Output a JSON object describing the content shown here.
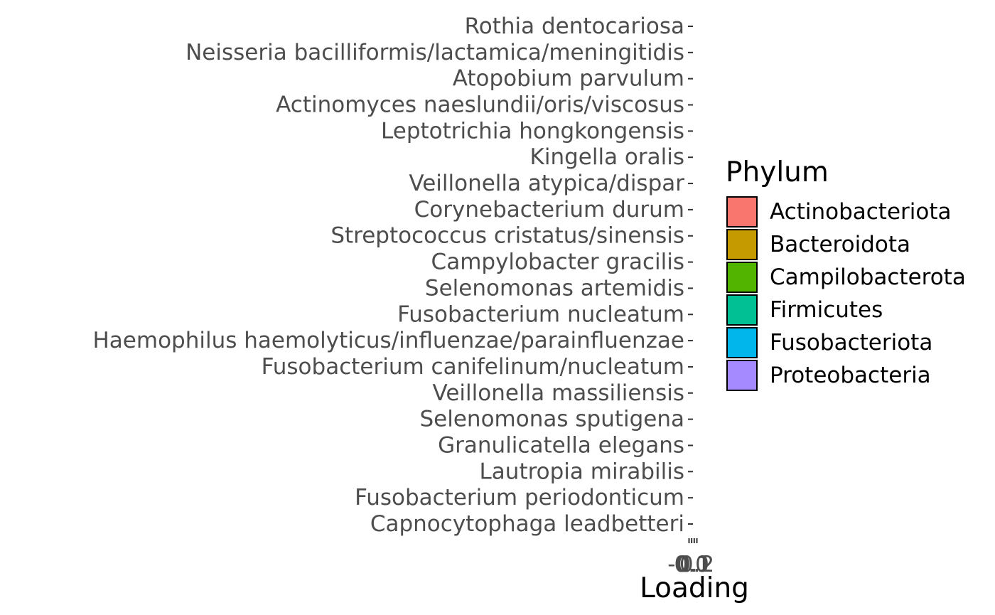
{
  "chart_data": {
    "type": "bar",
    "orientation": "horizontal",
    "categories": [
      "Capnocytophaga leadbetteri",
      "Fusobacterium periodonticum",
      "Lautropia mirabilis",
      "Granulicatella elegans",
      "Selenomonas sputigena",
      "Veillonella massiliensis",
      "Fusobacterium canifelinum/nucleatum",
      "Haemophilus haemolyticus/influenzae/parainfluenzae",
      "Fusobacterium nucleatum",
      "Selenomonas artemidis",
      "Campylobacter gracilis",
      "Streptococcus cristatus/sinensis",
      "Corynebacterium durum",
      "Veillonella atypica/dispar",
      "Kingella oralis",
      "Leptotrichia hongkongensis",
      "Actinomyces naeslundii/oris/viscosus",
      "Atopobium parvulum",
      "Neisseria bacilliformis/lactamica/meningitidis",
      "Rothia dentocariosa"
    ],
    "x_ticks": [
      {
        "value": -0.1,
        "label": "-0.1"
      },
      {
        "value": 0.0,
        "label": "0.0"
      },
      {
        "value": 0.1,
        "label": "0.1"
      },
      {
        "value": 0.2,
        "label": "0.2"
      }
    ],
    "xlim": [
      -0.1,
      0.2
    ],
    "xlabel": "Loading",
    "ylabel": "",
    "title": "",
    "grid": false,
    "legend": {
      "title": "Phylum",
      "placement": "right",
      "entries": [
        {
          "name": "Actinobacteriota",
          "color": "#F8766D"
        },
        {
          "name": "Bacteroidota",
          "color": "#C49A00"
        },
        {
          "name": "Campilobacterota",
          "color": "#53B400"
        },
        {
          "name": "Firmicutes",
          "color": "#00C094"
        },
        {
          "name": "Fusobacteriota",
          "color": "#00B6EB"
        },
        {
          "name": "Proteobacteria",
          "color": "#A58AFF"
        }
      ]
    }
  }
}
